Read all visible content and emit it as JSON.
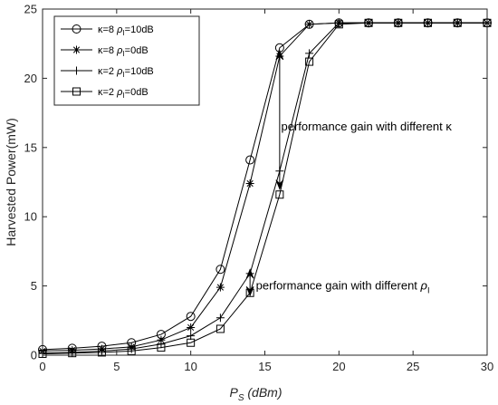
{
  "chart_data": {
    "type": "line",
    "xlabel_base": "P",
    "xlabel_sub": "S",
    "xlabel_unit": "(dBm)",
    "ylabel": "Harvested Power(mW)",
    "xlim": [
      0,
      30
    ],
    "ylim": [
      0,
      25
    ],
    "xticks": [
      0,
      5,
      10,
      15,
      20,
      25,
      30
    ],
    "yticks": [
      0,
      5,
      10,
      15,
      20,
      25
    ],
    "grid": false,
    "legend_position": "top-left",
    "series": [
      {
        "name": "κ=8 ρI=10dB",
        "legend": {
          "kappa": "κ=8",
          "rho": "ρ",
          "rho_sub": "I",
          "rest": "=10dB"
        },
        "marker": "circle",
        "x": [
          0,
          2,
          4,
          6,
          8,
          10,
          12,
          14,
          16,
          18,
          20,
          22,
          24,
          26,
          28,
          30
        ],
        "y": [
          0.4,
          0.5,
          0.65,
          0.9,
          1.5,
          2.8,
          6.2,
          14.1,
          22.2,
          23.9,
          24,
          24,
          24,
          24,
          24,
          24
        ]
      },
      {
        "name": "κ=8 ρI=0dB",
        "legend": {
          "kappa": "κ=8",
          "rho": "ρ",
          "rho_sub": "I",
          "rest": "=0dB"
        },
        "marker": "asterisk",
        "x": [
          0,
          2,
          4,
          6,
          8,
          10,
          12,
          14,
          16,
          18,
          20,
          22,
          24,
          26,
          28,
          30
        ],
        "y": [
          0.3,
          0.35,
          0.45,
          0.6,
          1.1,
          2.0,
          4.9,
          12.4,
          21.6,
          23.9,
          24,
          24,
          24,
          24,
          24,
          24
        ]
      },
      {
        "name": "κ=2 ρI=10dB",
        "legend": {
          "kappa": "κ=2",
          "rho": "ρ",
          "rho_sub": "I",
          "rest": "=10dB"
        },
        "marker": "plus",
        "x": [
          0,
          2,
          4,
          6,
          8,
          10,
          12,
          14,
          16,
          18,
          20,
          22,
          24,
          26,
          28,
          30
        ],
        "y": [
          0.15,
          0.2,
          0.3,
          0.45,
          0.8,
          1.4,
          2.7,
          5.9,
          13.3,
          21.8,
          24,
          24,
          24,
          24,
          24,
          24
        ]
      },
      {
        "name": "κ=2 ρI=0dB",
        "legend": {
          "kappa": "κ=2",
          "rho": "ρ",
          "rho_sub": "I",
          "rest": "=0dB"
        },
        "marker": "square",
        "x": [
          0,
          2,
          4,
          6,
          8,
          10,
          12,
          14,
          16,
          18,
          20,
          22,
          24,
          26,
          28,
          30
        ],
        "y": [
          0.1,
          0.15,
          0.2,
          0.3,
          0.55,
          0.9,
          1.9,
          4.5,
          11.6,
          21.2,
          23.9,
          24,
          24,
          24,
          24,
          24
        ]
      }
    ],
    "annotations": [
      {
        "text": "performance gain with different κ",
        "symbol": "",
        "symbol_sub": "",
        "anchor": [
          16.1,
          16.5
        ],
        "arrow": {
          "x": 16,
          "y_from": 22.0,
          "y_to": 12.0
        }
      },
      {
        "text": "performance gain with different ",
        "symbol": "ρ",
        "symbol_sub": "I",
        "anchor": [
          14.4,
          5.0
        ],
        "arrow": {
          "x": 14,
          "y_from": 6.2,
          "y_to": 4.3
        }
      }
    ]
  }
}
